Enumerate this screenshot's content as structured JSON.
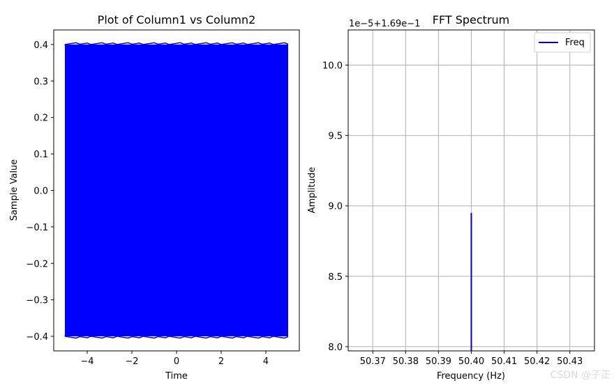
{
  "chart_data": [
    {
      "type": "line",
      "title": "Plot of Column1 vs Column2",
      "xlabel": "Time",
      "ylabel": "Sample Value",
      "xlim": [
        -5.5,
        5.5
      ],
      "ylim": [
        -0.44,
        0.44
      ],
      "xticks": [
        -4,
        -2,
        0,
        2,
        4
      ],
      "xtick_labels": [
        "−4",
        "−2",
        "0",
        "2",
        "4"
      ],
      "yticks": [
        0.4,
        0.3,
        0.2,
        0.1,
        0.0,
        -0.1,
        -0.2,
        -0.3,
        -0.4
      ],
      "ytick_labels": [
        "0.4",
        "0.3",
        "0.2",
        "0.1",
        "0.0",
        "−0.1",
        "−0.2",
        "−0.3",
        "−0.4"
      ],
      "grid": false,
      "series": [
        {
          "color": "#0000ff",
          "x_range": [
            -5,
            5
          ],
          "amplitude": 0.4,
          "description_values": {
            "min": -0.4,
            "max": 0.4
          }
        }
      ]
    },
    {
      "type": "line",
      "title": "FFT Spectrum",
      "xlabel": "Frequency (Hz)",
      "ylabel": "Amplitude",
      "offset_text": "1e−5+1.69e−1",
      "xlim": [
        50.3625,
        50.4375
      ],
      "ylim": [
        7.97,
        10.25
      ],
      "xticks": [
        50.37,
        50.38,
        50.39,
        50.4,
        50.41,
        50.42,
        50.43
      ],
      "xtick_labels": [
        "50.37",
        "50.38",
        "50.39",
        "50.40",
        "50.41",
        "50.42",
        "50.43"
      ],
      "yticks": [
        10.0,
        9.5,
        9.0,
        8.5,
        8.0
      ],
      "ytick_labels": [
        "10.0",
        "9.5",
        "9.0",
        "8.5",
        "8.0"
      ],
      "grid": true,
      "legend": {
        "placement": "top-right",
        "entries": [
          "Freq"
        ]
      },
      "series": [
        {
          "name": "Freq",
          "color": "#0000cc",
          "x": [
            50.4,
            50.4
          ],
          "y": [
            7.97,
            8.95
          ]
        }
      ]
    }
  ],
  "watermark": "CSDN @子正"
}
